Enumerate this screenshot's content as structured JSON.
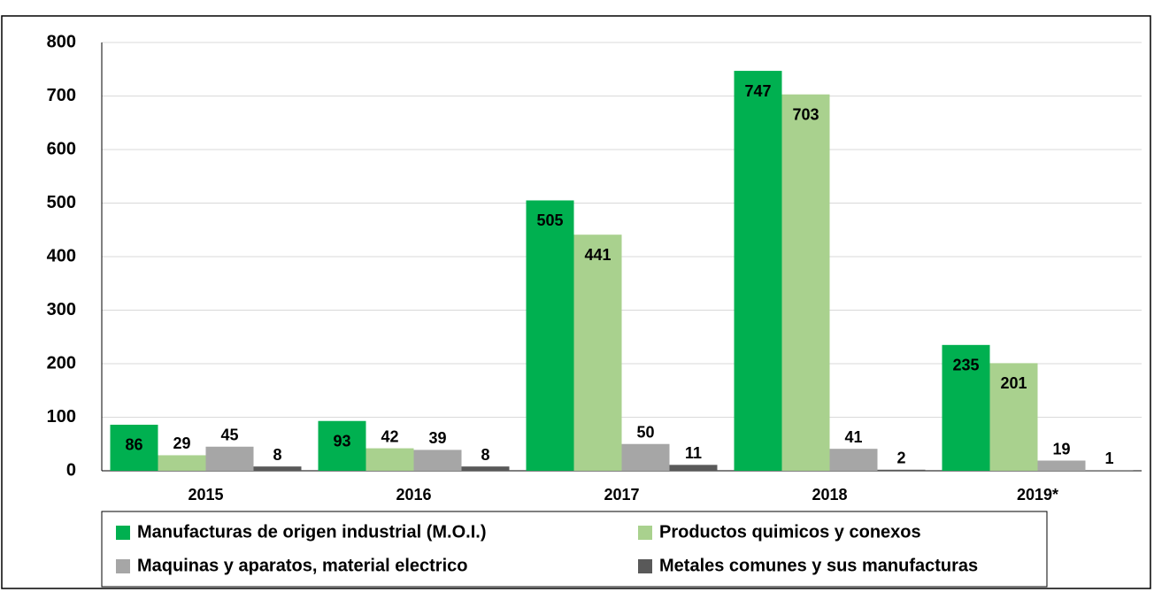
{
  "chart_data": {
    "type": "bar",
    "categories": [
      "2015",
      "2016",
      "2017",
      "2018",
      "2019*"
    ],
    "series": [
      {
        "name": "Manufacturas de origen industrial (M.O.I.)",
        "color": "#00b050",
        "values": [
          86,
          93,
          505,
          747,
          235
        ]
      },
      {
        "name": "Productos quimicos y conexos",
        "color": "#a9d18e",
        "values": [
          29,
          42,
          441,
          703,
          201
        ]
      },
      {
        "name": "Maquinas y aparatos, material electrico",
        "color": "#a6a6a6",
        "values": [
          45,
          39,
          50,
          41,
          19
        ]
      },
      {
        "name": "Metales comunes y sus manufacturas",
        "color": "#595959",
        "values": [
          8,
          8,
          11,
          2,
          1
        ]
      }
    ],
    "ylim": [
      0,
      800
    ],
    "yticks": [
      0,
      100,
      200,
      300,
      400,
      500,
      600,
      700,
      800
    ],
    "grid": true
  }
}
